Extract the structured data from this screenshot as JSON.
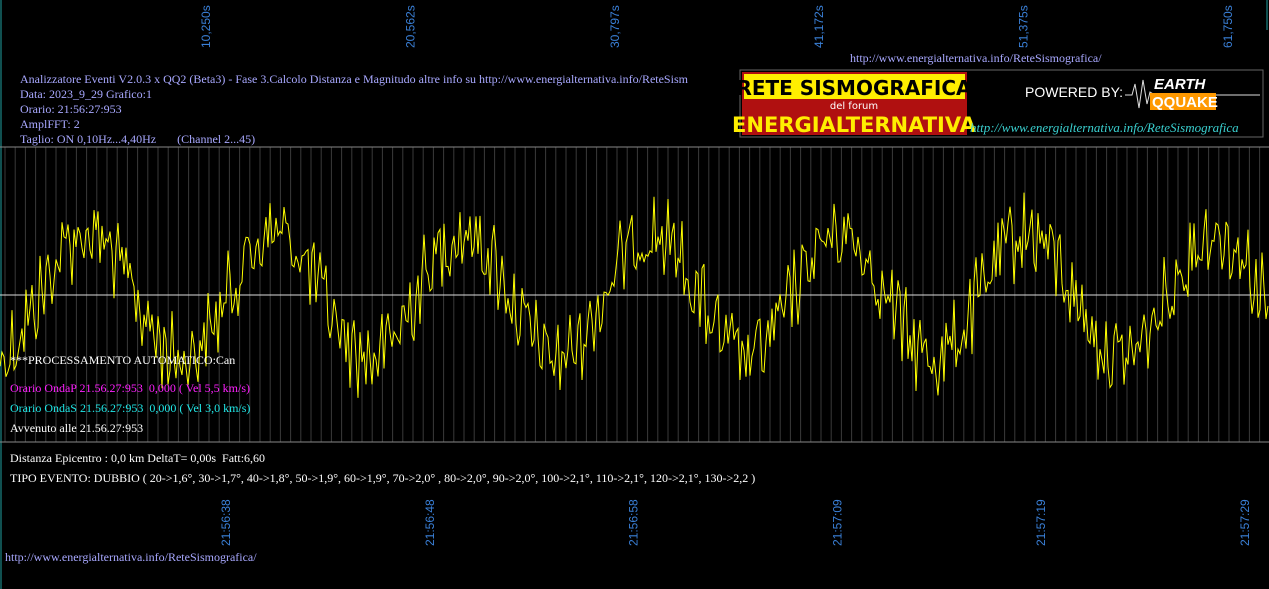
{
  "top_axis": {
    "labels": [
      "10,250s",
      "20,562s",
      "30,797s",
      "41,172s",
      "51,375s",
      "61,750s"
    ]
  },
  "header": {
    "url": "http://www.energialternativa.info/ReteSismografica/"
  },
  "info": {
    "lines": [
      "Analizzatore Eventi V2.0.3 x QQ2 (Beta3) - Fase 3.Calcolo Distanza e Magnitudo altre info su http://www.energialternativa.info/ReteSism",
      "Data: 2023_9_29 Grafico:1",
      "Orario: 21:56:27:953",
      "AmplFFT: 2",
      "Taglio: ON 0,10Hz...4,40Hz       (Channel 2...45)"
    ]
  },
  "logo": {
    "title": "RETE SISMOGRAFICA",
    "subtitle": "del forum",
    "name": "ENERGIALTERNATIVA",
    "powered": "POWERED BY:",
    "brand_top": "EARTH",
    "brand_bottom": "QQUAKE",
    "url": "http://www.energialternativa.info/ReteSismografica"
  },
  "overlay": {
    "status": "***PROCESSAMENTO AUTOMATICO:Can",
    "onda_p": "Orario OndaP 21.56.27:953  0,000 ( Vel 5,5 km/s)",
    "onda_s": "Orario OndaS 21.56.27:953  0,000 ( Vel 3,0 km/s)",
    "avvenuto": "Avvenuto alle 21.56.27:953"
  },
  "results": {
    "distance": "Distanza Epicentro : 0,0 km DeltaT= 0,00s  Fatt:6,60",
    "event": "TIPO EVENTO: DUBBIO ( 20->1,6°, 30->1,7°, 40->1,8°, 50->1,9°, 60->1,9°, 70->2,0° , 80->2,0°, 90->2,0°, 100->2,1°, 110->2,1°, 120->2,1°, 130->2,2 )"
  },
  "bottom_axis": {
    "labels": [
      "21:56:38",
      "21:56:48",
      "21:56:58",
      "21:57:09",
      "21:57:19",
      "21:57:29"
    ]
  },
  "footer": {
    "url": "http://www.energialternativa.info/ReteSismografica/"
  }
}
